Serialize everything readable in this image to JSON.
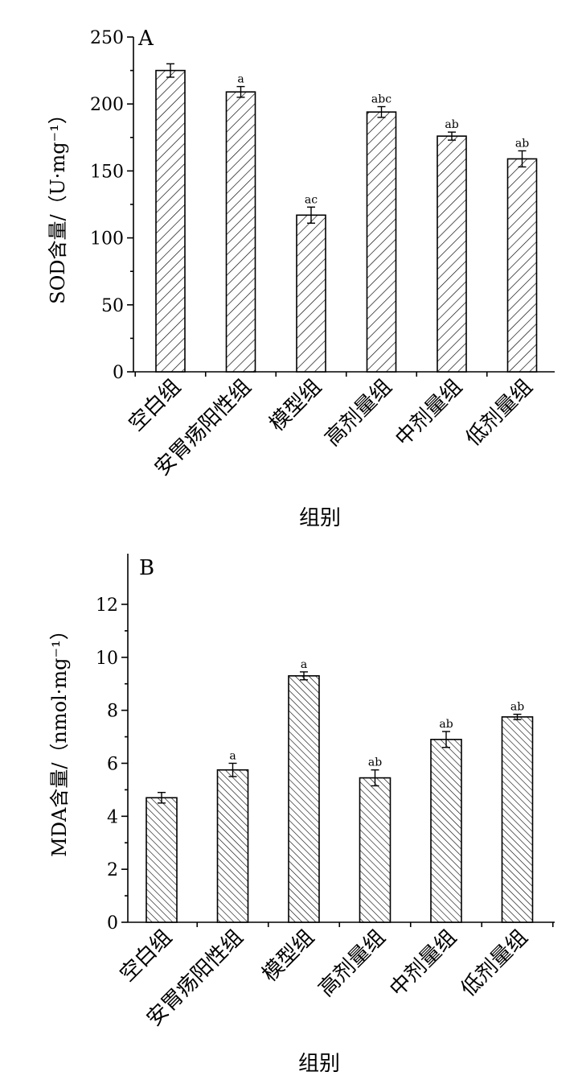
{
  "chart_data": [
    {
      "type": "bar",
      "panel_label": "A",
      "categories": [
        "空白组",
        "安胃疡阳性组",
        "模型组",
        "高剂量组",
        "中剂量组",
        "低剂量组"
      ],
      "values": [
        225,
        209,
        117,
        194,
        176,
        159
      ],
      "errors": [
        5,
        4,
        6,
        4,
        3,
        6
      ],
      "significance": [
        "",
        "a",
        "ac",
        "abc",
        "ab",
        "ab"
      ],
      "xlabel": "组别",
      "ylabel": "SOD含量/（U·mg⁻¹）",
      "ylim": [
        0,
        250
      ],
      "yticks": [
        "0",
        "50",
        "100",
        "150",
        "200",
        "250"
      ],
      "pattern": "hatch-forward",
      "grid": false
    },
    {
      "type": "bar",
      "panel_label": "B",
      "categories": [
        "空白组",
        "安胃疡阳性组",
        "模型组",
        "高剂量组",
        "中剂量组",
        "低剂量组"
      ],
      "values": [
        4.7,
        5.75,
        9.3,
        5.45,
        6.9,
        7.75
      ],
      "errors": [
        0.2,
        0.25,
        0.15,
        0.3,
        0.3,
        0.1
      ],
      "significance": [
        "",
        "a",
        "a",
        "ab",
        "ab",
        "ab"
      ],
      "xlabel": "组别",
      "ylabel": "MDA含量/（nmol·mg⁻¹）",
      "ylim": [
        0,
        13
      ],
      "yticks": [
        "0",
        "2",
        "4",
        "6",
        "8",
        "10",
        "12"
      ],
      "pattern": "hatch-backward",
      "grid": false
    }
  ]
}
